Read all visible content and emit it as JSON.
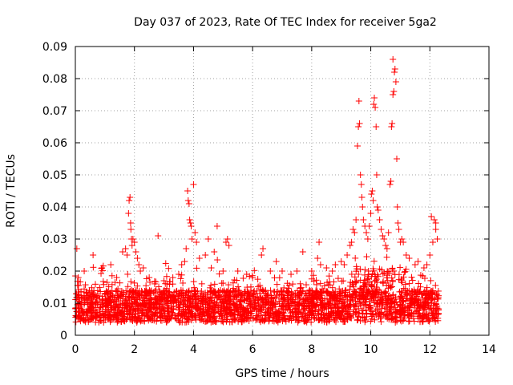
{
  "chart_data": {
    "type": "scatter",
    "title": "Day 037 of 2023, Rate Of TEC Index for receiver 5ga2",
    "xlabel": "GPS time / hours",
    "ylabel": "ROTI / TECUs",
    "xlim": [
      0,
      14
    ],
    "ylim": [
      0,
      0.09
    ],
    "x_ticks": [
      "0",
      "2",
      "4",
      "6",
      "8",
      "10",
      "12",
      "14"
    ],
    "y_ticks": [
      "0",
      "0.01",
      "0.02",
      "0.03",
      "0.04",
      "0.05",
      "0.06",
      "0.07",
      "0.08",
      "0.09"
    ],
    "grid": true,
    "marker": "+",
    "series": [
      {
        "name": "ROTI",
        "color": "#ff0000",
        "points": [
          [
            0.05,
            0.027
          ],
          [
            0.1,
            0.018
          ],
          [
            0.3,
            0.02
          ],
          [
            0.6,
            0.025
          ],
          [
            0.9,
            0.021
          ],
          [
            1.2,
            0.022
          ],
          [
            1.4,
            0.018
          ],
          [
            1.6,
            0.026
          ],
          [
            1.7,
            0.027
          ],
          [
            1.75,
            0.025
          ],
          [
            1.8,
            0.038
          ],
          [
            1.82,
            0.042
          ],
          [
            1.85,
            0.043
          ],
          [
            1.87,
            0.035
          ],
          [
            1.88,
            0.033
          ],
          [
            1.9,
            0.03
          ],
          [
            1.92,
            0.028
          ],
          [
            1.95,
            0.03
          ],
          [
            2.0,
            0.029
          ],
          [
            2.05,
            0.026
          ],
          [
            2.1,
            0.024
          ],
          [
            2.15,
            0.022
          ],
          [
            2.2,
            0.02
          ],
          [
            2.5,
            0.018
          ],
          [
            2.8,
            0.031
          ],
          [
            3.0,
            0.017
          ],
          [
            3.3,
            0.018
          ],
          [
            3.5,
            0.019
          ],
          [
            3.6,
            0.022
          ],
          [
            3.7,
            0.023
          ],
          [
            3.75,
            0.027
          ],
          [
            3.8,
            0.045
          ],
          [
            3.82,
            0.042
          ],
          [
            3.85,
            0.041
          ],
          [
            3.87,
            0.036
          ],
          [
            3.9,
            0.035
          ],
          [
            3.92,
            0.034
          ],
          [
            3.95,
            0.03
          ],
          [
            4.0,
            0.047
          ],
          [
            4.05,
            0.032
          ],
          [
            4.1,
            0.029
          ],
          [
            4.2,
            0.024
          ],
          [
            4.4,
            0.025
          ],
          [
            4.5,
            0.03
          ],
          [
            4.7,
            0.026
          ],
          [
            4.8,
            0.034
          ],
          [
            5.0,
            0.02
          ],
          [
            5.1,
            0.029
          ],
          [
            5.15,
            0.03
          ],
          [
            5.2,
            0.028
          ],
          [
            5.5,
            0.02
          ],
          [
            6.0,
            0.018
          ],
          [
            6.3,
            0.025
          ],
          [
            6.35,
            0.027
          ],
          [
            6.8,
            0.023
          ],
          [
            7.0,
            0.02
          ],
          [
            7.5,
            0.02
          ],
          [
            7.7,
            0.026
          ],
          [
            8.0,
            0.02
          ],
          [
            8.2,
            0.024
          ],
          [
            8.25,
            0.029
          ],
          [
            8.3,
            0.022
          ],
          [
            8.5,
            0.021
          ],
          [
            8.8,
            0.022
          ],
          [
            9.0,
            0.023
          ],
          [
            9.2,
            0.025
          ],
          [
            9.3,
            0.028
          ],
          [
            9.35,
            0.029
          ],
          [
            9.4,
            0.033
          ],
          [
            9.45,
            0.032
          ],
          [
            9.5,
            0.036
          ],
          [
            9.55,
            0.059
          ],
          [
            9.58,
            0.065
          ],
          [
            9.6,
            0.073
          ],
          [
            9.62,
            0.066
          ],
          [
            9.65,
            0.05
          ],
          [
            9.68,
            0.047
          ],
          [
            9.7,
            0.043
          ],
          [
            9.72,
            0.04
          ],
          [
            9.75,
            0.036
          ],
          [
            9.8,
            0.034
          ],
          [
            9.85,
            0.032
          ],
          [
            9.9,
            0.03
          ],
          [
            9.95,
            0.034
          ],
          [
            10.0,
            0.038
          ],
          [
            10.02,
            0.044
          ],
          [
            10.05,
            0.045
          ],
          [
            10.08,
            0.042
          ],
          [
            10.1,
            0.072
          ],
          [
            10.12,
            0.074
          ],
          [
            10.15,
            0.071
          ],
          [
            10.18,
            0.065
          ],
          [
            10.2,
            0.05
          ],
          [
            10.22,
            0.04
          ],
          [
            10.25,
            0.039
          ],
          [
            10.3,
            0.036
          ],
          [
            10.35,
            0.033
          ],
          [
            10.4,
            0.031
          ],
          [
            10.45,
            0.03
          ],
          [
            10.5,
            0.028
          ],
          [
            10.55,
            0.027
          ],
          [
            10.6,
            0.032
          ],
          [
            10.65,
            0.047
          ],
          [
            10.68,
            0.048
          ],
          [
            10.7,
            0.065
          ],
          [
            10.72,
            0.066
          ],
          [
            10.75,
            0.075
          ],
          [
            10.78,
            0.076
          ],
          [
            10.8,
            0.082
          ],
          [
            10.82,
            0.083
          ],
          [
            10.75,
            0.086
          ],
          [
            10.85,
            0.079
          ],
          [
            10.88,
            0.055
          ],
          [
            10.9,
            0.04
          ],
          [
            10.92,
            0.035
          ],
          [
            10.95,
            0.033
          ],
          [
            11.0,
            0.029
          ],
          [
            11.05,
            0.03
          ],
          [
            11.1,
            0.029
          ],
          [
            11.2,
            0.025
          ],
          [
            11.5,
            0.022
          ],
          [
            11.8,
            0.021
          ],
          [
            12.0,
            0.025
          ],
          [
            12.05,
            0.037
          ],
          [
            12.1,
            0.029
          ],
          [
            12.15,
            0.036
          ],
          [
            12.2,
            0.033
          ],
          [
            12.25,
            0.03
          ],
          [
            12.2,
            0.035
          ],
          [
            2.3,
            0.021
          ],
          [
            3.1,
            0.016
          ],
          [
            4.6,
            0.021
          ],
          [
            5.8,
            0.019
          ],
          [
            6.6,
            0.02
          ],
          [
            7.3,
            0.019
          ],
          [
            8.7,
            0.02
          ],
          [
            9.1,
            0.022
          ],
          [
            11.3,
            0.024
          ],
          [
            11.6,
            0.023
          ],
          [
            11.9,
            0.022
          ]
        ]
      }
    ]
  }
}
